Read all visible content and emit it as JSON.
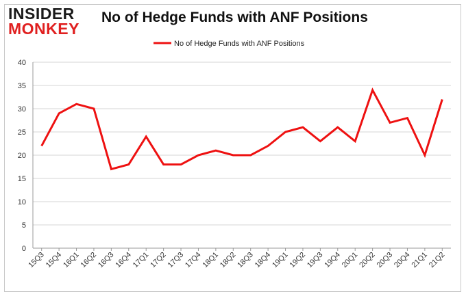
{
  "logo": {
    "line1": "INSIDER",
    "line2": "MONKEY"
  },
  "chart_data": {
    "type": "line",
    "title": "No of Hedge Funds with ANF Positions",
    "xlabel": "",
    "ylabel": "",
    "categories": [
      "15Q3",
      "15Q4",
      "16Q1",
      "16Q2",
      "16Q3",
      "16Q4",
      "17Q1",
      "17Q2",
      "17Q3",
      "17Q4",
      "18Q1",
      "18Q2",
      "18Q3",
      "18Q4",
      "19Q1",
      "19Q2",
      "19Q3",
      "19Q4",
      "20Q1",
      "20Q2",
      "20Q3",
      "20Q4",
      "21Q1",
      "21Q2"
    ],
    "series": [
      {
        "name": "No of Hedge Funds with ANF Positions",
        "color": "#ee1111",
        "values": [
          22,
          29,
          31,
          30,
          17,
          18,
          24,
          18,
          18,
          20,
          21,
          20,
          20,
          22,
          25,
          26,
          23,
          26,
          23,
          34,
          27,
          28,
          20,
          32
        ]
      }
    ],
    "ylim": [
      0,
      40
    ],
    "yticks": [
      0,
      5,
      10,
      15,
      20,
      25,
      30,
      35,
      40
    ],
    "grid": true,
    "legend": "top-center"
  }
}
